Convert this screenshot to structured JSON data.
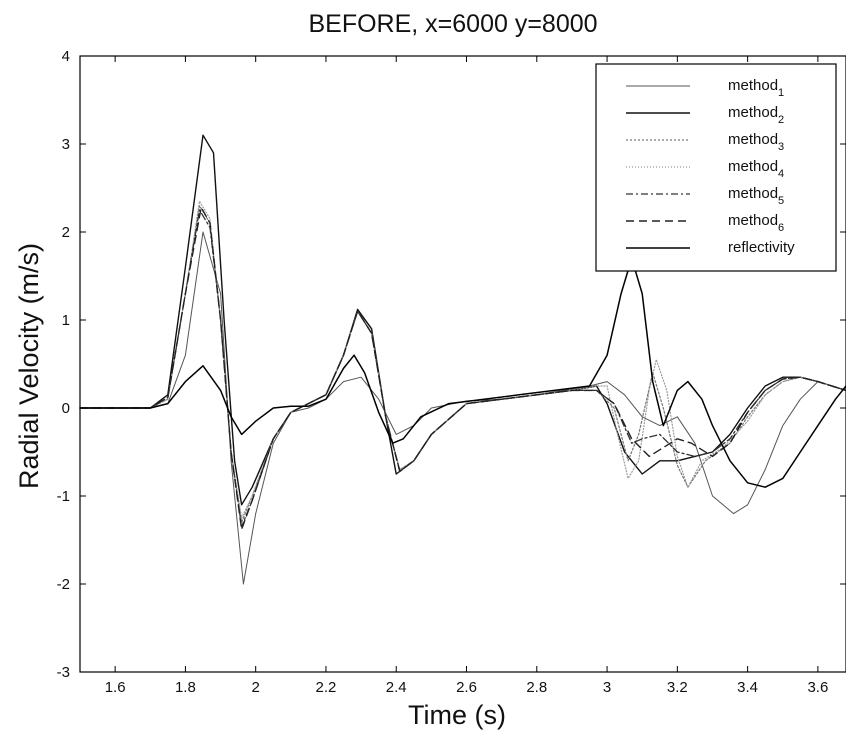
{
  "chart_data": {
    "type": "line",
    "title": "BEFORE, x=6000 y=8000",
    "xlabel": "Time (s)",
    "ylabel": "Radial Velocity (m/s)",
    "xlim": [
      1.5,
      3.68
    ],
    "ylim": [
      -3,
      4
    ],
    "xticks": [
      1.6,
      1.8,
      2,
      2.2,
      2.4,
      2.6,
      2.8,
      3,
      3.2,
      3.4,
      3.6
    ],
    "xtick_labels": [
      "1.6",
      "1.8",
      "2",
      "2.2",
      "2.4",
      "2.6",
      "2.8",
      "3",
      "3.2",
      "3.4",
      "3.6"
    ],
    "yticks": [
      -3,
      -2,
      -1,
      0,
      1,
      2,
      3,
      4
    ],
    "ytick_labels": [
      "-3",
      "-2",
      "-1",
      "0",
      "1",
      "2",
      "3",
      "4"
    ],
    "grid": false,
    "legend_position": "top-right",
    "series": [
      {
        "name": "method",
        "subscript": "1",
        "color": "#555555",
        "dash": "",
        "width": 1.0,
        "points": [
          [
            1.5,
            0
          ],
          [
            1.7,
            0
          ],
          [
            1.75,
            0.05
          ],
          [
            1.8,
            0.6
          ],
          [
            1.85,
            2.0
          ],
          [
            1.9,
            1.3
          ],
          [
            1.93,
            -0.6
          ],
          [
            1.965,
            -2.0
          ],
          [
            2.0,
            -1.2
          ],
          [
            2.05,
            -0.4
          ],
          [
            2.1,
            -0.05
          ],
          [
            2.15,
            0.0
          ],
          [
            2.2,
            0.1
          ],
          [
            2.25,
            0.3
          ],
          [
            2.3,
            0.35
          ],
          [
            2.35,
            0.1
          ],
          [
            2.4,
            -0.3
          ],
          [
            2.45,
            -0.2
          ],
          [
            2.5,
            0.0
          ],
          [
            2.6,
            0.08
          ],
          [
            2.7,
            0.1
          ],
          [
            2.8,
            0.15
          ],
          [
            2.95,
            0.25
          ],
          [
            3.0,
            0.3
          ],
          [
            3.05,
            0.15
          ],
          [
            3.1,
            -0.1
          ],
          [
            3.15,
            -0.2
          ],
          [
            3.2,
            -0.1
          ],
          [
            3.25,
            -0.4
          ],
          [
            3.3,
            -1.0
          ],
          [
            3.36,
            -1.2
          ],
          [
            3.4,
            -1.1
          ],
          [
            3.45,
            -0.7
          ],
          [
            3.5,
            -0.2
          ],
          [
            3.55,
            0.1
          ],
          [
            3.6,
            0.3
          ],
          [
            3.68,
            0.2
          ]
        ]
      },
      {
        "name": "method",
        "subscript": "2",
        "color": "#111111",
        "dash": "",
        "width": 1.4,
        "points": [
          [
            1.5,
            0
          ],
          [
            1.7,
            0
          ],
          [
            1.75,
            0.15
          ],
          [
            1.8,
            1.6
          ],
          [
            1.85,
            3.1
          ],
          [
            1.88,
            2.9
          ],
          [
            1.91,
            1.0
          ],
          [
            1.94,
            -0.6
          ],
          [
            1.96,
            -1.1
          ],
          [
            1.99,
            -0.9
          ],
          [
            2.05,
            -0.35
          ],
          [
            2.1,
            -0.05
          ],
          [
            2.2,
            0.15
          ],
          [
            2.25,
            0.6
          ],
          [
            2.29,
            1.12
          ],
          [
            2.33,
            0.9
          ],
          [
            2.37,
            -0.1
          ],
          [
            2.4,
            -0.75
          ],
          [
            2.45,
            -0.6
          ],
          [
            2.5,
            -0.3
          ],
          [
            2.6,
            0.05
          ],
          [
            2.7,
            0.1
          ],
          [
            2.8,
            0.15
          ],
          [
            2.9,
            0.2
          ],
          [
            2.97,
            0.25
          ],
          [
            3.0,
            0.05
          ],
          [
            3.05,
            -0.5
          ],
          [
            3.1,
            -0.75
          ],
          [
            3.15,
            -0.6
          ],
          [
            3.2,
            -0.6
          ],
          [
            3.25,
            -0.55
          ],
          [
            3.3,
            -0.5
          ],
          [
            3.35,
            -0.3
          ],
          [
            3.4,
            0.0
          ],
          [
            3.45,
            0.25
          ],
          [
            3.5,
            0.35
          ],
          [
            3.55,
            0.35
          ],
          [
            3.6,
            0.3
          ],
          [
            3.68,
            0.2
          ]
        ]
      },
      {
        "name": "method",
        "subscript": "3",
        "color": "#777777",
        "dash": "2,2",
        "width": 1.2,
        "points": [
          [
            1.5,
            0
          ],
          [
            1.7,
            0
          ],
          [
            1.75,
            0.1
          ],
          [
            1.8,
            1.3
          ],
          [
            1.84,
            2.3
          ],
          [
            1.87,
            2.1
          ],
          [
            1.9,
            1.0
          ],
          [
            1.93,
            -0.5
          ],
          [
            1.96,
            -1.3
          ],
          [
            1.99,
            -1.0
          ],
          [
            2.05,
            -0.35
          ],
          [
            2.1,
            -0.05
          ],
          [
            2.2,
            0.15
          ],
          [
            2.25,
            0.6
          ],
          [
            2.29,
            1.1
          ],
          [
            2.33,
            0.85
          ],
          [
            2.37,
            -0.1
          ],
          [
            2.41,
            -0.7
          ],
          [
            2.45,
            -0.6
          ],
          [
            2.5,
            -0.3
          ],
          [
            2.6,
            0.05
          ],
          [
            2.7,
            0.1
          ],
          [
            2.8,
            0.15
          ],
          [
            2.9,
            0.2
          ],
          [
            2.97,
            0.2
          ],
          [
            3.02,
            0.0
          ],
          [
            3.06,
            -0.6
          ],
          [
            3.09,
            -0.3
          ],
          [
            3.13,
            0.4
          ],
          [
            3.16,
            0.0
          ],
          [
            3.2,
            -0.65
          ],
          [
            3.23,
            -0.9
          ],
          [
            3.28,
            -0.6
          ],
          [
            3.35,
            -0.4
          ],
          [
            3.4,
            -0.1
          ],
          [
            3.45,
            0.15
          ],
          [
            3.5,
            0.3
          ],
          [
            3.55,
            0.35
          ],
          [
            3.6,
            0.3
          ],
          [
            3.68,
            0.2
          ]
        ]
      },
      {
        "name": "method",
        "subscript": "4",
        "color": "#9a9a9a",
        "dash": "1,2",
        "width": 1.2,
        "points": [
          [
            1.5,
            0
          ],
          [
            1.7,
            0
          ],
          [
            1.75,
            0.1
          ],
          [
            1.8,
            1.3
          ],
          [
            1.84,
            2.35
          ],
          [
            1.87,
            2.15
          ],
          [
            1.9,
            1.0
          ],
          [
            1.93,
            -0.5
          ],
          [
            1.96,
            -1.25
          ],
          [
            1.99,
            -1.0
          ],
          [
            2.05,
            -0.35
          ],
          [
            2.1,
            -0.05
          ],
          [
            2.2,
            0.15
          ],
          [
            2.25,
            0.6
          ],
          [
            2.29,
            1.1
          ],
          [
            2.33,
            0.85
          ],
          [
            2.37,
            -0.1
          ],
          [
            2.41,
            -0.7
          ],
          [
            2.45,
            -0.6
          ],
          [
            2.5,
            -0.3
          ],
          [
            2.6,
            0.05
          ],
          [
            2.7,
            0.1
          ],
          [
            2.8,
            0.15
          ],
          [
            2.9,
            0.2
          ],
          [
            2.97,
            0.25
          ],
          [
            3.0,
            0.25
          ],
          [
            3.03,
            -0.3
          ],
          [
            3.06,
            -0.8
          ],
          [
            3.09,
            -0.6
          ],
          [
            3.12,
            0.2
          ],
          [
            3.14,
            0.55
          ],
          [
            3.17,
            0.2
          ],
          [
            3.2,
            -0.55
          ],
          [
            3.23,
            -0.9
          ],
          [
            3.27,
            -0.6
          ],
          [
            3.33,
            -0.45
          ],
          [
            3.4,
            -0.15
          ],
          [
            3.45,
            0.15
          ],
          [
            3.5,
            0.3
          ],
          [
            3.55,
            0.35
          ],
          [
            3.6,
            0.3
          ],
          [
            3.68,
            0.2
          ]
        ]
      },
      {
        "name": "method",
        "subscript": "5",
        "color": "#333333",
        "dash": "7,3,2,3",
        "width": 1.3,
        "points": [
          [
            1.5,
            0
          ],
          [
            1.7,
            0
          ],
          [
            1.75,
            0.12
          ],
          [
            1.8,
            1.3
          ],
          [
            1.84,
            2.25
          ],
          [
            1.87,
            2.05
          ],
          [
            1.9,
            1.0
          ],
          [
            1.93,
            -0.5
          ],
          [
            1.96,
            -1.35
          ],
          [
            1.99,
            -1.05
          ],
          [
            2.05,
            -0.35
          ],
          [
            2.1,
            -0.05
          ],
          [
            2.2,
            0.15
          ],
          [
            2.25,
            0.6
          ],
          [
            2.29,
            1.1
          ],
          [
            2.33,
            0.85
          ],
          [
            2.37,
            -0.1
          ],
          [
            2.41,
            -0.72
          ],
          [
            2.45,
            -0.6
          ],
          [
            2.5,
            -0.3
          ],
          [
            2.6,
            0.05
          ],
          [
            2.7,
            0.1
          ],
          [
            2.8,
            0.15
          ],
          [
            2.9,
            0.2
          ],
          [
            2.97,
            0.2
          ],
          [
            3.02,
            0.05
          ],
          [
            3.07,
            -0.4
          ],
          [
            3.1,
            -0.35
          ],
          [
            3.15,
            -0.3
          ],
          [
            3.2,
            -0.5
          ],
          [
            3.25,
            -0.55
          ],
          [
            3.3,
            -0.5
          ],
          [
            3.35,
            -0.35
          ],
          [
            3.4,
            -0.05
          ],
          [
            3.45,
            0.2
          ],
          [
            3.5,
            0.33
          ],
          [
            3.55,
            0.35
          ],
          [
            3.6,
            0.3
          ],
          [
            3.68,
            0.2
          ]
        ]
      },
      {
        "name": "method",
        "subscript": "6",
        "color": "#222222",
        "dash": "8,5",
        "width": 1.4,
        "points": [
          [
            1.5,
            0
          ],
          [
            1.7,
            0
          ],
          [
            1.75,
            0.12
          ],
          [
            1.8,
            1.3
          ],
          [
            1.845,
            2.28
          ],
          [
            1.87,
            2.1
          ],
          [
            1.9,
            1.0
          ],
          [
            1.93,
            -0.5
          ],
          [
            1.96,
            -1.38
          ],
          [
            1.99,
            -1.05
          ],
          [
            2.05,
            -0.35
          ],
          [
            2.1,
            -0.05
          ],
          [
            2.2,
            0.15
          ],
          [
            2.25,
            0.6
          ],
          [
            2.29,
            1.1
          ],
          [
            2.33,
            0.85
          ],
          [
            2.37,
            -0.1
          ],
          [
            2.41,
            -0.72
          ],
          [
            2.45,
            -0.6
          ],
          [
            2.5,
            -0.3
          ],
          [
            2.6,
            0.05
          ],
          [
            2.7,
            0.1
          ],
          [
            2.8,
            0.15
          ],
          [
            2.9,
            0.2
          ],
          [
            2.97,
            0.2
          ],
          [
            3.02,
            0.05
          ],
          [
            3.07,
            -0.35
          ],
          [
            3.12,
            -0.55
          ],
          [
            3.16,
            -0.45
          ],
          [
            3.2,
            -0.35
          ],
          [
            3.24,
            -0.4
          ],
          [
            3.3,
            -0.55
          ],
          [
            3.35,
            -0.4
          ],
          [
            3.4,
            -0.05
          ],
          [
            3.45,
            0.2
          ],
          [
            3.5,
            0.33
          ],
          [
            3.55,
            0.35
          ],
          [
            3.6,
            0.3
          ],
          [
            3.68,
            0.2
          ]
        ]
      },
      {
        "name": "reflectivity",
        "subscript": "",
        "color": "#000000",
        "dash": "",
        "width": 1.5,
        "points": [
          [
            1.5,
            0
          ],
          [
            1.7,
            0
          ],
          [
            1.75,
            0.05
          ],
          [
            1.8,
            0.3
          ],
          [
            1.85,
            0.48
          ],
          [
            1.9,
            0.2
          ],
          [
            1.93,
            -0.1
          ],
          [
            1.96,
            -0.3
          ],
          [
            2.0,
            -0.15
          ],
          [
            2.05,
            0.0
          ],
          [
            2.1,
            0.02
          ],
          [
            2.15,
            0.02
          ],
          [
            2.2,
            0.1
          ],
          [
            2.25,
            0.45
          ],
          [
            2.28,
            0.6
          ],
          [
            2.31,
            0.4
          ],
          [
            2.35,
            -0.05
          ],
          [
            2.39,
            -0.4
          ],
          [
            2.42,
            -0.35
          ],
          [
            2.47,
            -0.1
          ],
          [
            2.55,
            0.05
          ],
          [
            2.65,
            0.1
          ],
          [
            2.75,
            0.15
          ],
          [
            2.85,
            0.2
          ],
          [
            2.95,
            0.25
          ],
          [
            3.0,
            0.6
          ],
          [
            3.04,
            1.3
          ],
          [
            3.07,
            1.7
          ],
          [
            3.1,
            1.3
          ],
          [
            3.13,
            0.3
          ],
          [
            3.16,
            -0.2
          ],
          [
            3.2,
            0.2
          ],
          [
            3.23,
            0.3
          ],
          [
            3.27,
            0.1
          ],
          [
            3.3,
            -0.2
          ],
          [
            3.35,
            -0.6
          ],
          [
            3.4,
            -0.85
          ],
          [
            3.45,
            -0.9
          ],
          [
            3.5,
            -0.8
          ],
          [
            3.55,
            -0.5
          ],
          [
            3.6,
            -0.2
          ],
          [
            3.65,
            0.1
          ],
          [
            3.68,
            0.25
          ]
        ]
      }
    ]
  }
}
